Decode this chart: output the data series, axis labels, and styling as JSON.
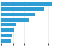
{
  "values": [
    1300,
    1100,
    850,
    720,
    370,
    310,
    270,
    250
  ],
  "bar_color": "#2E9ED4",
  "background_color": "#ffffff",
  "grid_color": "#e0e0e0",
  "xlim_max": 1450,
  "bar_height": 0.65,
  "figsize": [
    1.0,
    0.71
  ],
  "dpi": 100
}
